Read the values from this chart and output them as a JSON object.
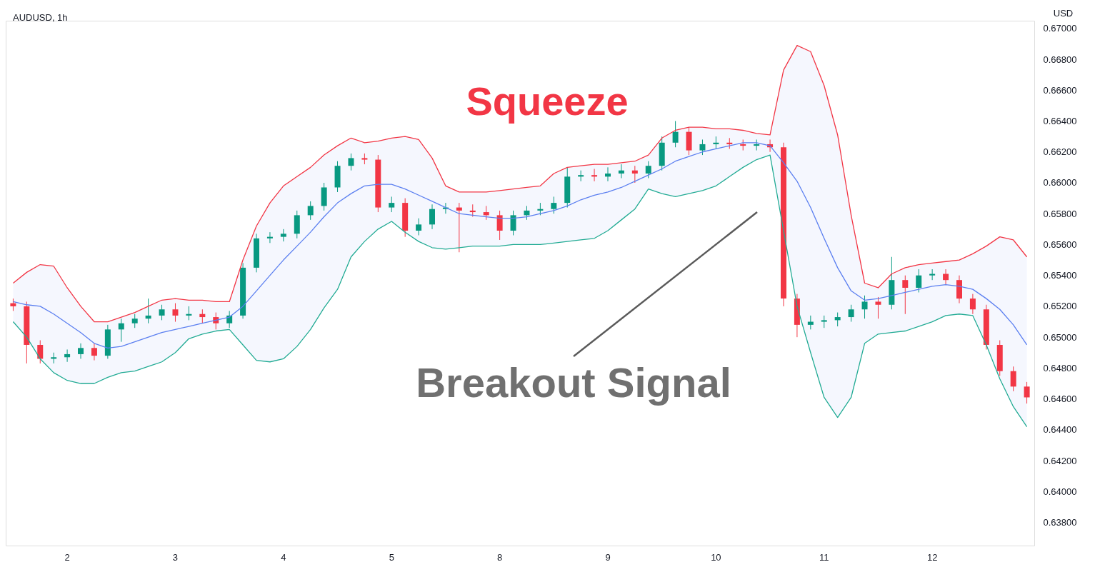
{
  "chart_data": {
    "type": "candlestick",
    "title": "AUDUSD, 1h",
    "ylabel": "USD",
    "categories": [
      null,
      null,
      null,
      null,
      "2",
      null,
      null,
      null,
      null,
      null,
      null,
      null,
      "3",
      null,
      null,
      null,
      null,
      null,
      null,
      null,
      "4",
      null,
      null,
      null,
      null,
      null,
      null,
      null,
      "5",
      null,
      null,
      null,
      null,
      null,
      null,
      null,
      "8",
      null,
      null,
      null,
      null,
      null,
      null,
      null,
      "9",
      null,
      null,
      null,
      null,
      null,
      null,
      null,
      "10",
      null,
      null,
      null,
      null,
      null,
      null,
      null,
      "11",
      null,
      null,
      null,
      null,
      null,
      null,
      null,
      "12",
      null,
      null,
      null,
      null,
      null,
      null,
      null
    ],
    "colors": [
      "#f23645",
      "#f23645",
      "#f23645",
      "#089981",
      "#089981",
      "#089981",
      "#f23645",
      "#089981",
      "#089981",
      "#089981",
      "#089981",
      "#089981",
      "#f23645",
      "#089981",
      "#f23645",
      "#f23645",
      "#089981",
      "#089981",
      "#089981",
      "#089981",
      "#089981",
      "#089981",
      "#089981",
      "#089981",
      "#089981",
      "#089981",
      "#f23645",
      "#f23645",
      "#089981",
      "#f23645",
      "#089981",
      "#089981",
      "#089981",
      "#f23645",
      "#f23645",
      "#f23645",
      "#f23645",
      "#089981",
      "#089981",
      "#089981",
      "#089981",
      "#089981",
      "#089981",
      "#f23645",
      "#089981",
      "#089981",
      "#f23645",
      "#089981",
      "#089981",
      "#089981",
      "#f23645",
      "#089981",
      "#089981",
      "#f23645",
      "#f23645",
      "#089981",
      "#f23645",
      "#f23645",
      "#f23645",
      "#089981",
      "#089981",
      "#089981",
      "#089981",
      "#089981",
      "#f23645",
      "#089981",
      "#f23645",
      "#089981",
      "#089981",
      "#f23645",
      "#f23645",
      "#f23645",
      "#f23645",
      "#f23645",
      "#f23645",
      "#f23645"
    ],
    "ohlc": [
      [
        0.6522,
        0.6525,
        0.6517,
        0.652
      ],
      [
        0.652,
        0.6523,
        0.6483,
        0.6495
      ],
      [
        0.6495,
        0.6498,
        0.6483,
        0.6486
      ],
      [
        0.6486,
        0.649,
        0.6483,
        0.6487
      ],
      [
        0.6487,
        0.6492,
        0.6484,
        0.6489
      ],
      [
        0.6489,
        0.6496,
        0.6486,
        0.6493
      ],
      [
        0.6493,
        0.6496,
        0.6485,
        0.6488
      ],
      [
        0.6488,
        0.6508,
        0.6486,
        0.6505
      ],
      [
        0.6505,
        0.6512,
        0.6497,
        0.6509
      ],
      [
        0.6509,
        0.6515,
        0.6506,
        0.6512
      ],
      [
        0.6512,
        0.6525,
        0.6509,
        0.6514
      ],
      [
        0.6514,
        0.6521,
        0.6511,
        0.6518
      ],
      [
        0.6518,
        0.6522,
        0.651,
        0.6514
      ],
      [
        0.6514,
        0.652,
        0.6511,
        0.6515
      ],
      [
        0.6515,
        0.6518,
        0.6509,
        0.6513
      ],
      [
        0.6513,
        0.6516,
        0.6505,
        0.6509
      ],
      [
        0.6509,
        0.6517,
        0.6506,
        0.6514
      ],
      [
        0.6514,
        0.6548,
        0.6512,
        0.6545
      ],
      [
        0.6545,
        0.6567,
        0.6542,
        0.6564
      ],
      [
        0.6564,
        0.6568,
        0.6561,
        0.6565
      ],
      [
        0.6565,
        0.657,
        0.6562,
        0.6567
      ],
      [
        0.6567,
        0.6582,
        0.6564,
        0.6579
      ],
      [
        0.6579,
        0.6588,
        0.6576,
        0.6585
      ],
      [
        0.6585,
        0.66,
        0.6582,
        0.6597
      ],
      [
        0.6597,
        0.6614,
        0.6594,
        0.6611
      ],
      [
        0.6611,
        0.6619,
        0.6608,
        0.6616
      ],
      [
        0.6616,
        0.6619,
        0.6612,
        0.6615
      ],
      [
        0.6615,
        0.6618,
        0.6581,
        0.6584
      ],
      [
        0.6584,
        0.6591,
        0.6581,
        0.6587
      ],
      [
        0.6587,
        0.659,
        0.6565,
        0.6569
      ],
      [
        0.6569,
        0.6577,
        0.6566,
        0.6573
      ],
      [
        0.6573,
        0.6586,
        0.657,
        0.6583
      ],
      [
        0.6583,
        0.6587,
        0.658,
        0.6584
      ],
      [
        0.6584,
        0.6587,
        0.6555,
        0.6582
      ],
      [
        0.6582,
        0.6586,
        0.6578,
        0.6581
      ],
      [
        0.6581,
        0.6585,
        0.6576,
        0.6579
      ],
      [
        0.6579,
        0.6582,
        0.6563,
        0.6569
      ],
      [
        0.6569,
        0.6582,
        0.6566,
        0.6579
      ],
      [
        0.6579,
        0.6585,
        0.6576,
        0.6582
      ],
      [
        0.6582,
        0.6587,
        0.6579,
        0.6583
      ],
      [
        0.6583,
        0.6591,
        0.658,
        0.6587
      ],
      [
        0.6587,
        0.661,
        0.6584,
        0.6604
      ],
      [
        0.6604,
        0.6608,
        0.6601,
        0.6605
      ],
      [
        0.6605,
        0.6609,
        0.6601,
        0.6604
      ],
      [
        0.6604,
        0.661,
        0.6601,
        0.6606
      ],
      [
        0.6606,
        0.6612,
        0.6603,
        0.6608
      ],
      [
        0.6608,
        0.6611,
        0.66,
        0.6606
      ],
      [
        0.6606,
        0.6614,
        0.6603,
        0.6611
      ],
      [
        0.6611,
        0.663,
        0.6608,
        0.6626
      ],
      [
        0.6626,
        0.664,
        0.6623,
        0.6633
      ],
      [
        0.6633,
        0.6636,
        0.6618,
        0.6621
      ],
      [
        0.6621,
        0.6628,
        0.6618,
        0.6625
      ],
      [
        0.6625,
        0.663,
        0.6622,
        0.6626
      ],
      [
        0.6626,
        0.6629,
        0.6622,
        0.6625
      ],
      [
        0.6625,
        0.6628,
        0.6621,
        0.6624
      ],
      [
        0.6624,
        0.6628,
        0.6621,
        0.6625
      ],
      [
        0.6625,
        0.6628,
        0.662,
        0.6623
      ],
      [
        0.6623,
        0.6626,
        0.652,
        0.6525
      ],
      [
        0.6525,
        0.6528,
        0.65,
        0.6508
      ],
      [
        0.6508,
        0.6514,
        0.6505,
        0.651
      ],
      [
        0.651,
        0.6514,
        0.6506,
        0.6511
      ],
      [
        0.6511,
        0.6516,
        0.6507,
        0.6513
      ],
      [
        0.6513,
        0.6521,
        0.651,
        0.6518
      ],
      [
        0.6518,
        0.6527,
        0.6512,
        0.6523
      ],
      [
        0.6523,
        0.6526,
        0.6512,
        0.6521
      ],
      [
        0.6521,
        0.6552,
        0.6518,
        0.6537
      ],
      [
        0.6537,
        0.654,
        0.6515,
        0.6532
      ],
      [
        0.6532,
        0.6544,
        0.6529,
        0.654
      ],
      [
        0.654,
        0.6544,
        0.6537,
        0.6541
      ],
      [
        0.6541,
        0.6544,
        0.6534,
        0.6537
      ],
      [
        0.6537,
        0.654,
        0.6522,
        0.6525
      ],
      [
        0.6525,
        0.6528,
        0.6515,
        0.6518
      ],
      [
        0.6518,
        0.6521,
        0.6492,
        0.6495
      ],
      [
        0.6495,
        0.6498,
        0.6475,
        0.6478
      ],
      [
        0.6478,
        0.6481,
        0.6465,
        0.6468
      ],
      [
        0.6468,
        0.6471,
        0.6457,
        0.6461
      ]
    ],
    "series": [
      {
        "type": "line",
        "color": "#f23645",
        "values": [
          0.6535,
          0.6542,
          0.6547,
          0.6546,
          0.6532,
          0.652,
          0.651,
          0.651,
          0.6513,
          0.6516,
          0.652,
          0.6524,
          0.6525,
          0.6524,
          0.6524,
          0.6523,
          0.6523,
          0.655,
          0.6572,
          0.6587,
          0.6598,
          0.6604,
          0.661,
          0.6618,
          0.6624,
          0.6629,
          0.6626,
          0.6627,
          0.6629,
          0.663,
          0.6628,
          0.6616,
          0.6598,
          0.6594,
          0.6594,
          0.6594,
          0.6595,
          0.6596,
          0.6597,
          0.6598,
          0.6606,
          0.661,
          0.6611,
          0.6612,
          0.6612,
          0.6613,
          0.6614,
          0.6618,
          0.6629,
          0.6634,
          0.6636,
          0.6636,
          0.6635,
          0.6635,
          0.6634,
          0.6632,
          0.6631,
          0.6673,
          0.6689,
          0.6685,
          0.6663,
          0.6631,
          0.6579,
          0.6535,
          0.6532,
          0.6541,
          0.6545,
          0.6547,
          0.6548,
          0.6549,
          0.655,
          0.6554,
          0.6559,
          0.6565,
          0.6563,
          0.6552
        ]
      },
      {
        "type": "line",
        "color": "#5b7ff0",
        "upper": [
          0.6535,
          0.6542,
          0.6547,
          0.6546,
          0.6532,
          0.652,
          0.651,
          0.651,
          0.6513,
          0.6516,
          0.652,
          0.6524,
          0.6525,
          0.6524,
          0.6524,
          0.6523,
          0.6523,
          0.655,
          0.6572,
          0.6587,
          0.6598,
          0.6604,
          0.661,
          0.6618,
          0.6624,
          0.6629,
          0.6626,
          0.6627,
          0.6629,
          0.663,
          0.6628,
          0.6616,
          0.6598,
          0.6594,
          0.6594,
          0.6594,
          0.6595,
          0.6596,
          0.6597,
          0.6598,
          0.6606,
          0.661,
          0.6611,
          0.6612,
          0.6612,
          0.6613,
          0.6614,
          0.6618,
          0.6629,
          0.6634,
          0.6636,
          0.6636,
          0.6635,
          0.6635,
          0.6634,
          0.6632,
          0.6631,
          0.6673,
          0.6689,
          0.6685,
          0.6663,
          0.6631,
          0.6579,
          0.6535,
          0.6532,
          0.6541,
          0.6545,
          0.6547,
          0.6548,
          0.6549,
          0.655,
          0.6554,
          0.6559,
          0.6565,
          0.6563,
          0.6552
        ],
        "lower": [
          0.651,
          0.65,
          0.6486,
          0.6477,
          0.6472,
          0.647,
          0.647,
          0.6474,
          0.6477,
          0.6478,
          0.6481,
          0.6484,
          0.649,
          0.6499,
          0.6502,
          0.6504,
          0.6505,
          0.6495,
          0.6485,
          0.6484,
          0.6486,
          0.6494,
          0.6505,
          0.6519,
          0.6531,
          0.6552,
          0.6562,
          0.657,
          0.6575,
          0.6568,
          0.6562,
          0.6558,
          0.6557,
          0.6558,
          0.6559,
          0.6559,
          0.6559,
          0.656,
          0.656,
          0.656,
          0.6561,
          0.6562,
          0.6563,
          0.6564,
          0.6569,
          0.6576,
          0.6583,
          0.6596,
          0.6593,
          0.6591,
          0.6593,
          0.6595,
          0.6598,
          0.6604,
          0.661,
          0.6615,
          0.6618,
          0.6569,
          0.652,
          0.649,
          0.6461,
          0.6448,
          0.6461,
          0.6496,
          0.6502,
          0.6503,
          0.6504,
          0.6507,
          0.651,
          0.6514,
          0.6515,
          0.6514,
          0.6495,
          0.6473,
          0.6455,
          0.6442
        ],
        "values": [
          0.6523,
          0.6521,
          0.652,
          0.6515,
          0.6509,
          0.6503,
          0.6496,
          0.6493,
          0.6494,
          0.6497,
          0.65,
          0.6503,
          0.6505,
          0.6507,
          0.6509,
          0.6511,
          0.6513,
          0.652,
          0.653,
          0.654,
          0.655,
          0.6559,
          0.6568,
          0.6578,
          0.6587,
          0.6593,
          0.6598,
          0.6599,
          0.6599,
          0.6596,
          0.6592,
          0.6588,
          0.6584,
          0.658,
          0.6579,
          0.6578,
          0.6577,
          0.6577,
          0.6578,
          0.658,
          0.6582,
          0.6585,
          0.6589,
          0.6592,
          0.6594,
          0.6597,
          0.6601,
          0.6605,
          0.6609,
          0.6614,
          0.6617,
          0.662,
          0.6622,
          0.6624,
          0.6626,
          0.6626,
          0.6624,
          0.6613,
          0.6601,
          0.6584,
          0.6564,
          0.6545,
          0.653,
          0.6524,
          0.6525,
          0.6527,
          0.6529,
          0.6531,
          0.6533,
          0.6534,
          0.6533,
          0.6531,
          0.6525,
          0.6518,
          0.6508,
          0.6495
        ]
      },
      {
        "type": "line",
        "color": "#22ab94",
        "values": [
          0.651,
          0.65,
          0.6486,
          0.6477,
          0.6472,
          0.647,
          0.647,
          0.6474,
          0.6477,
          0.6478,
          0.6481,
          0.6484,
          0.649,
          0.6499,
          0.6502,
          0.6504,
          0.6505,
          0.6495,
          0.6485,
          0.6484,
          0.6486,
          0.6494,
          0.6505,
          0.6519,
          0.6531,
          0.6552,
          0.6562,
          0.657,
          0.6575,
          0.6568,
          0.6562,
          0.6558,
          0.6557,
          0.6558,
          0.6559,
          0.6559,
          0.6559,
          0.656,
          0.656,
          0.656,
          0.6561,
          0.6562,
          0.6563,
          0.6564,
          0.6569,
          0.6576,
          0.6583,
          0.6596,
          0.6593,
          0.6591,
          0.6593,
          0.6595,
          0.6598,
          0.6604,
          0.661,
          0.6615,
          0.6618,
          0.6569,
          0.652,
          0.649,
          0.6461,
          0.6448,
          0.6461,
          0.6496,
          0.6502,
          0.6503,
          0.6504,
          0.6507,
          0.651,
          0.6514,
          0.6515,
          0.6514,
          0.6495,
          0.6473,
          0.6455,
          0.6442
        ]
      }
    ],
    "ylim": [
      0.6365,
      0.6705
    ],
    "yticks": [
      {
        "value": 0.638,
        "label": "0.63800"
      },
      {
        "value": 0.64,
        "label": "0.64000"
      },
      {
        "value": 0.642,
        "label": "0.64200"
      },
      {
        "value": 0.644,
        "label": "0.64400"
      },
      {
        "value": 0.646,
        "label": "0.64600"
      },
      {
        "value": 0.648,
        "label": "0.64800"
      },
      {
        "value": 0.65,
        "label": "0.65000"
      },
      {
        "value": 0.652,
        "label": "0.65200"
      },
      {
        "value": 0.654,
        "label": "0.65400"
      },
      {
        "value": 0.656,
        "label": "0.65600"
      },
      {
        "value": 0.658,
        "label": "0.65800"
      },
      {
        "value": 0.66,
        "label": "0.66000"
      },
      {
        "value": 0.662,
        "label": "0.66200"
      },
      {
        "value": 0.664,
        "label": "0.66400"
      },
      {
        "value": 0.666,
        "label": "0.66600"
      },
      {
        "value": 0.668,
        "label": "0.66800"
      },
      {
        "value": 0.67,
        "label": "0.67000"
      }
    ],
    "grid": false,
    "annotations": [
      "Squeeze",
      "Breakout Signal"
    ]
  }
}
